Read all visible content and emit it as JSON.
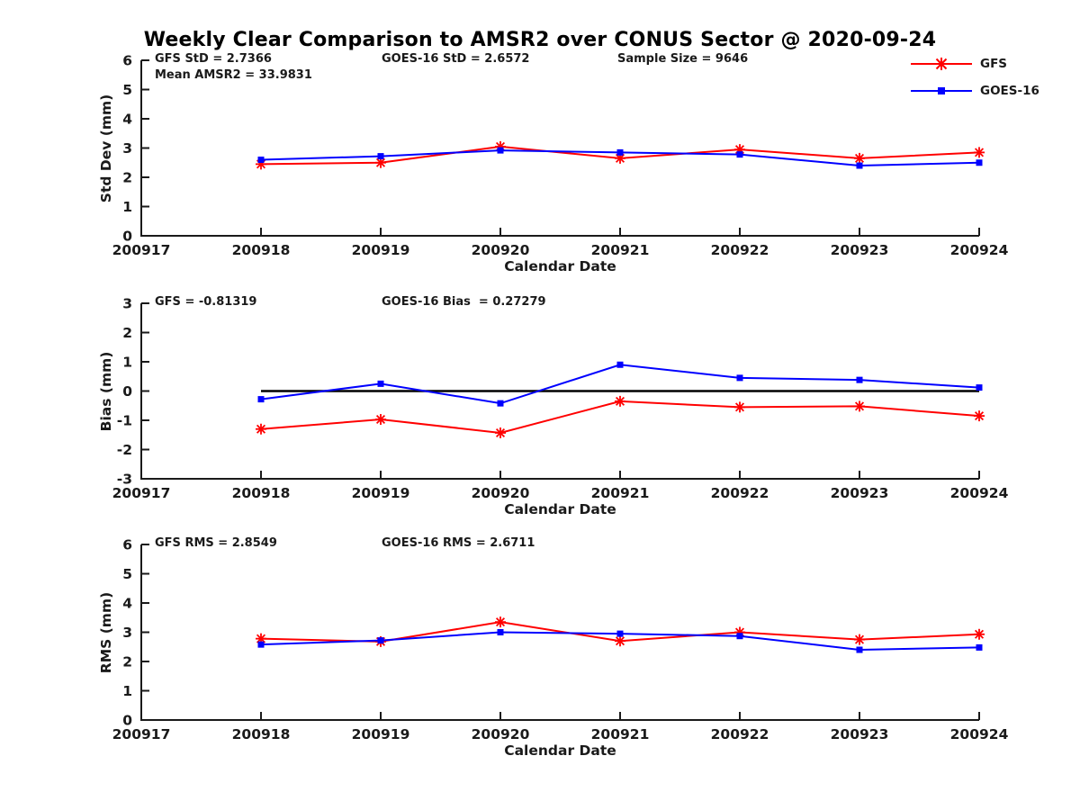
{
  "title": "Weekly Clear Comparison to AMSR2 over CONUS Sector @ 2020-09-24",
  "colors": {
    "gfs": "#ff0000",
    "goes16": "#0000ff",
    "axis": "#1a1a1a",
    "zero_line": "#000000"
  },
  "legend": {
    "items": [
      {
        "label": "GFS",
        "color": "#ff0000",
        "marker": "asterisk"
      },
      {
        "label": "GOES-16",
        "color": "#0000ff",
        "marker": "square"
      }
    ]
  },
  "chart_data": [
    {
      "type": "line",
      "panel": "std-dev",
      "ylabel": "Std Dev (mm)",
      "xlabel": "Calendar Date",
      "ylim": [
        0,
        6
      ],
      "ytick_step": 1,
      "grid": false,
      "x_tick_labels": [
        "200917",
        "200918",
        "200919",
        "200920",
        "200921",
        "200922",
        "200923",
        "200924"
      ],
      "categories": [
        "200918",
        "200919",
        "200920",
        "200921",
        "200922",
        "200923",
        "200924"
      ],
      "series": [
        {
          "name": "GFS",
          "color": "#ff0000",
          "marker": "asterisk",
          "values": [
            2.45,
            2.5,
            3.05,
            2.65,
            2.95,
            2.65,
            2.85
          ]
        },
        {
          "name": "GOES-16",
          "color": "#0000ff",
          "marker": "square",
          "values": [
            2.6,
            2.72,
            2.92,
            2.85,
            2.78,
            2.4,
            2.5
          ]
        }
      ],
      "zero_line": false,
      "annotations": [
        {
          "text": "GFS StD = 2.7366"
        },
        {
          "text": "Mean AMSR2 = 33.9831"
        },
        {
          "text": "GOES-16 StD = 2.6572"
        },
        {
          "text": "Sample Size = 9646"
        }
      ]
    },
    {
      "type": "line",
      "panel": "bias",
      "ylabel": "Bias (mm)",
      "xlabel": "Calendar Date",
      "ylim": [
        -3,
        3
      ],
      "ytick_step": 1,
      "grid": false,
      "x_tick_labels": [
        "200917",
        "200918",
        "200919",
        "200920",
        "200921",
        "200922",
        "200923",
        "200924"
      ],
      "categories": [
        "200918",
        "200919",
        "200920",
        "200921",
        "200922",
        "200923",
        "200924"
      ],
      "series": [
        {
          "name": "GFS",
          "color": "#ff0000",
          "marker": "asterisk",
          "values": [
            -1.3,
            -0.97,
            -1.43,
            -0.35,
            -0.55,
            -0.52,
            -0.85
          ]
        },
        {
          "name": "GOES-16",
          "color": "#0000ff",
          "marker": "square",
          "values": [
            -0.28,
            0.25,
            -0.42,
            0.9,
            0.45,
            0.38,
            0.12
          ]
        }
      ],
      "zero_line": true,
      "annotations": [
        {
          "text": "GFS = -0.81319"
        },
        {
          "text": "GOES-16 Bias  = 0.27279"
        }
      ]
    },
    {
      "type": "line",
      "panel": "rms",
      "ylabel": "RMS (mm)",
      "xlabel": "Calendar Date",
      "ylim": [
        0,
        6
      ],
      "ytick_step": 1,
      "grid": false,
      "x_tick_labels": [
        "200917",
        "200918",
        "200919",
        "200920",
        "200921",
        "200922",
        "200923",
        "200924"
      ],
      "categories": [
        "200918",
        "200919",
        "200920",
        "200921",
        "200922",
        "200923",
        "200924"
      ],
      "series": [
        {
          "name": "GFS",
          "color": "#ff0000",
          "marker": "asterisk",
          "values": [
            2.78,
            2.68,
            3.35,
            2.7,
            3.0,
            2.75,
            2.93
          ]
        },
        {
          "name": "GOES-16",
          "color": "#0000ff",
          "marker": "square",
          "values": [
            2.58,
            2.72,
            3.0,
            2.95,
            2.87,
            2.4,
            2.48
          ]
        }
      ],
      "zero_line": false,
      "annotations": [
        {
          "text": "GFS RMS = 2.8549"
        },
        {
          "text": "GOES-16 RMS = 2.6711"
        }
      ]
    }
  ]
}
